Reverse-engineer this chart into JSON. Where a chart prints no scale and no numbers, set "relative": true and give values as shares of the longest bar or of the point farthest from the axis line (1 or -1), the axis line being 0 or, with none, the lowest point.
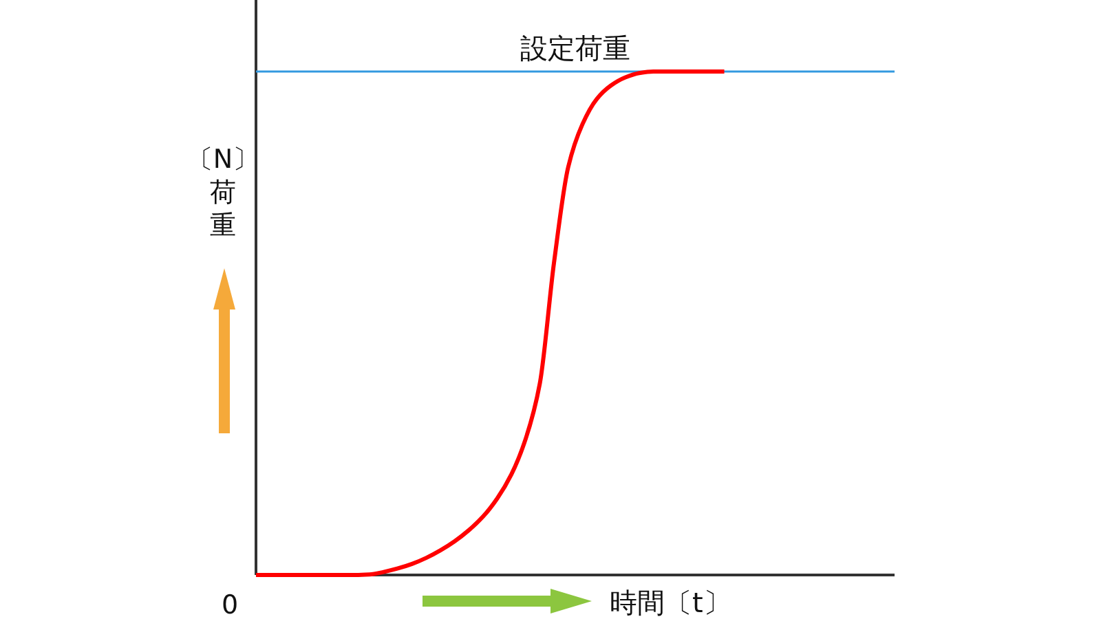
{
  "chart_data": {
    "type": "line",
    "relative": true,
    "xlabel": "時間〔t〕",
    "ylabel": "〔N〕荷重",
    "annotations": [
      "0"
    ],
    "marker": "none",
    "line_style": "solid",
    "categories": [
      null,
      null,
      null,
      null,
      null,
      null,
      null,
      null,
      null,
      null,
      null,
      null,
      null,
      null,
      null,
      null,
      null,
      null,
      null,
      null,
      null,
      null,
      null,
      null,
      null,
      null,
      null,
      null,
      null,
      null,
      null,
      null,
      null,
      null,
      null,
      null,
      null,
      null,
      null,
      null,
      null
    ],
    "series": [
      {
        "color": "#ff0000",
        "values": [
          0,
          0,
          0,
          0,
          0,
          0,
          0,
          0,
          0.001,
          0.006,
          0.013,
          0.022,
          0.034,
          0.049,
          0.067,
          0.089,
          0.116,
          0.152,
          0.2,
          0.27,
          0.38,
          0.62,
          0.81,
          0.895,
          0.945,
          0.972,
          0.988,
          0.997,
          1,
          1,
          1,
          1,
          1,
          1,
          null,
          null,
          null,
          null,
          null,
          null,
          null
        ]
      }
    ],
    "ref_lines": [
      {
        "axis": "y",
        "value": 1,
        "label": "設定荷重",
        "color": "#3399e0"
      }
    ]
  }
}
